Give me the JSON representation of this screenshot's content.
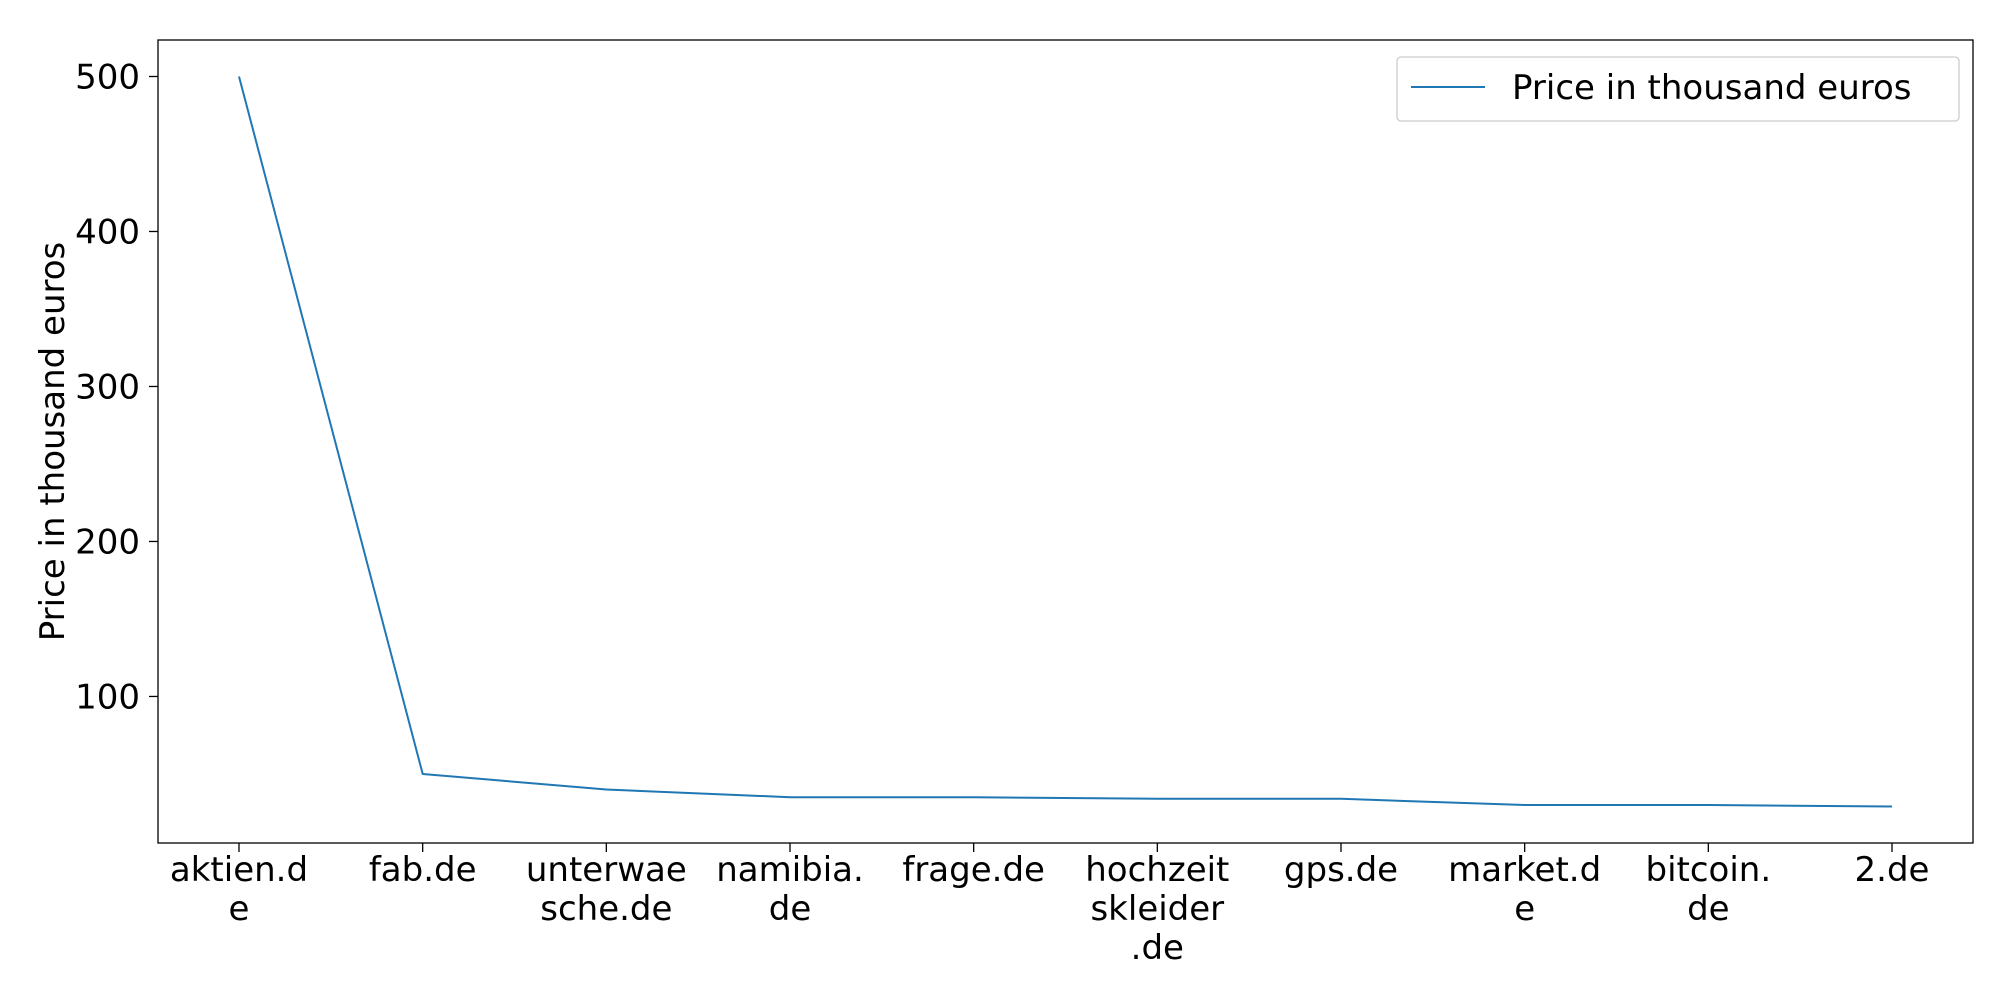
{
  "chart_data": {
    "type": "line",
    "categories": [
      [
        "aktien.d",
        "e"
      ],
      [
        "fab.de"
      ],
      [
        "unterwae",
        "sche.de"
      ],
      [
        "namibia.",
        "de"
      ],
      [
        "frage.de"
      ],
      [
        "hochzeit",
        "skleider",
        ".de"
      ],
      [
        "gps.de"
      ],
      [
        "market.d",
        "e"
      ],
      [
        "bitcoin.",
        "de"
      ],
      [
        "2.de"
      ]
    ],
    "series": [
      {
        "name": "Price in thousand euros",
        "values": [
          500,
          50,
          40,
          35,
          35,
          34,
          34,
          30,
          30,
          29
        ],
        "color": "#1f77b4"
      }
    ],
    "xlabel": "",
    "ylabel": "Price in thousand euros",
    "ylim": [
      5.45,
      523.55
    ],
    "yticks": [
      100,
      200,
      300,
      400,
      500
    ],
    "grid": false,
    "legend_position": "upper right"
  }
}
